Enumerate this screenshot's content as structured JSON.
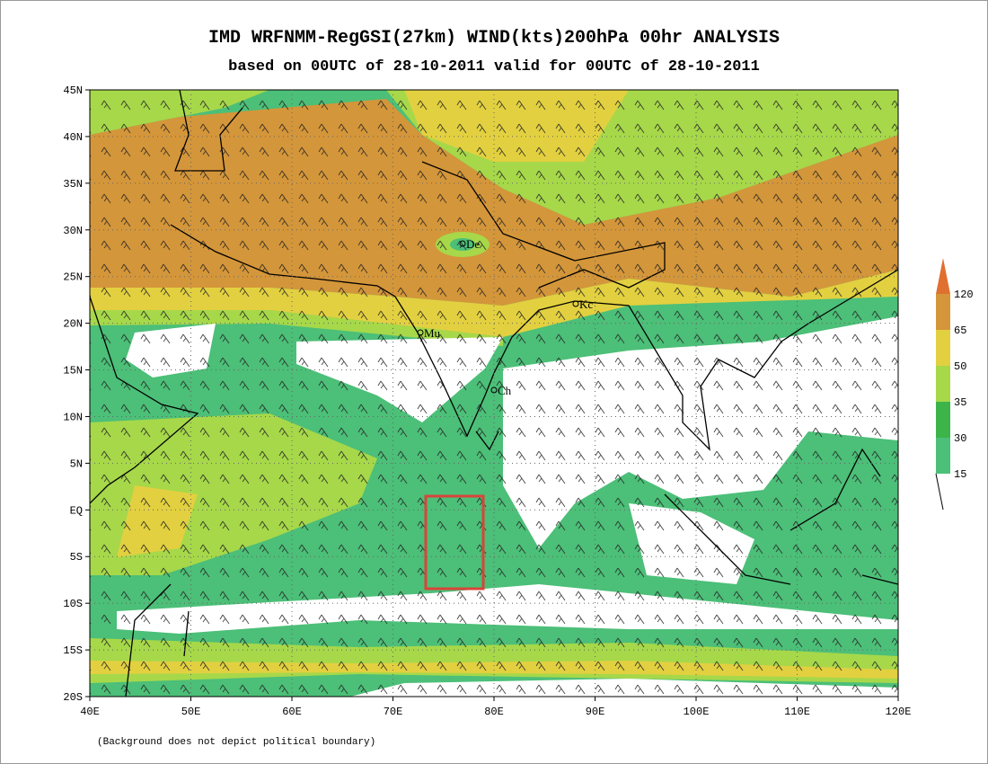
{
  "header": {
    "title": "IMD WRFNMM-RegGSI(27km) WIND(kts)200hPa 00hr ANALYSIS",
    "subtitle": "based on 00UTC of 28-10-2011 valid for 00UTC of 28-10-2011"
  },
  "map": {
    "lat_labels": [
      "45N",
      "40N",
      "35N",
      "30N",
      "25N",
      "20N",
      "15N",
      "10N",
      "5N",
      "EQ",
      "5S",
      "10S",
      "15S",
      "20S"
    ],
    "lon_labels": [
      "40E",
      "50E",
      "60E",
      "70E",
      "80E",
      "90E",
      "100E",
      "110E",
      "120E"
    ],
    "cities": [
      "De",
      "Mu",
      "Ch",
      "Kc"
    ]
  },
  "legend": {
    "levels": [
      15,
      30,
      35,
      50,
      65,
      120
    ],
    "colors": [
      "#4cbf78",
      "#3cb44a",
      "#a6d84a",
      "#e2d040",
      "#d4963a",
      "#e07030"
    ]
  },
  "footnote": "(Background does not depict political boundary)"
}
